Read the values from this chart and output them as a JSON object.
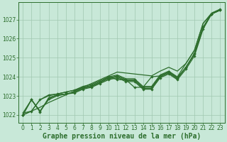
{
  "bg_color": "#c8e8d8",
  "grid_color": "#a0c8b0",
  "line_color": "#2d6e2d",
  "xlabel": "Graphe pression niveau de la mer (hPa)",
  "xlabel_fontsize": 7.0,
  "ylim": [
    1021.6,
    1027.9
  ],
  "xlim": [
    -0.5,
    23.5
  ],
  "yticks": [
    1022,
    1023,
    1024,
    1025,
    1026,
    1027
  ],
  "xticks": [
    0,
    1,
    2,
    3,
    4,
    5,
    6,
    7,
    8,
    9,
    10,
    11,
    12,
    13,
    14,
    15,
    16,
    17,
    18,
    19,
    20,
    21,
    22,
    23
  ],
  "series_no_marker": [
    [
      1022.1,
      1022.8,
      1022.2,
      1022.8,
      1023.0,
      1023.1,
      1023.2,
      1023.4,
      1023.5,
      1023.7,
      1023.9,
      1024.0,
      1023.8,
      1023.8,
      1023.4,
      1023.4,
      1024.0,
      1024.2,
      1023.9,
      1024.5,
      1025.2,
      1026.6,
      1027.3,
      1027.5
    ],
    [
      1022.1,
      1022.2,
      1022.8,
      1023.0,
      1023.1,
      1023.2,
      1023.3,
      1023.5,
      1023.6,
      1023.8,
      1024.0,
      1024.1,
      1023.9,
      1023.9,
      1023.5,
      1023.5,
      1024.1,
      1024.3,
      1024.0,
      1024.7,
      1025.4,
      1026.8,
      1027.3,
      1027.5
    ]
  ],
  "series_with_marker": [
    [
      1022.0,
      1022.8,
      1022.15,
      1022.9,
      1023.05,
      1023.1,
      1023.15,
      1023.35,
      1023.45,
      1023.65,
      1023.85,
      1023.95,
      1023.75,
      1023.75,
      1023.35,
      1023.35,
      1023.95,
      1024.15,
      1023.85,
      1024.4,
      1025.1,
      1026.5,
      1027.3,
      1027.5
    ],
    [
      1022.0,
      1022.2,
      1022.8,
      1023.05,
      1023.1,
      1023.2,
      1023.3,
      1023.45,
      1023.55,
      1023.75,
      1023.95,
      1024.05,
      1023.85,
      1023.85,
      1023.45,
      1023.45,
      1024.05,
      1024.25,
      1023.95,
      1024.5,
      1025.2,
      1026.6,
      1027.3,
      1027.5
    ],
    [
      1022.0,
      1022.8,
      1022.2,
      1022.85,
      1023.05,
      1023.1,
      1023.2,
      1023.4,
      1023.5,
      1023.7,
      1024.0,
      1023.85,
      1023.85,
      1023.45,
      1023.45,
      1024.0,
      1024.05,
      1024.25,
      1023.95,
      1024.5,
      1025.25,
      1026.6,
      1027.3,
      1027.55
    ]
  ],
  "line_straight": [
    1022.0,
    1022.2,
    1022.4,
    1022.65,
    1022.85,
    1023.05,
    1023.25,
    1023.45,
    1023.65,
    1023.85,
    1024.05,
    1024.25,
    1024.2,
    1024.15,
    1024.1,
    1024.05,
    1024.3,
    1024.5,
    1024.3,
    1024.7,
    1025.4,
    1026.8,
    1027.35,
    1027.55
  ]
}
